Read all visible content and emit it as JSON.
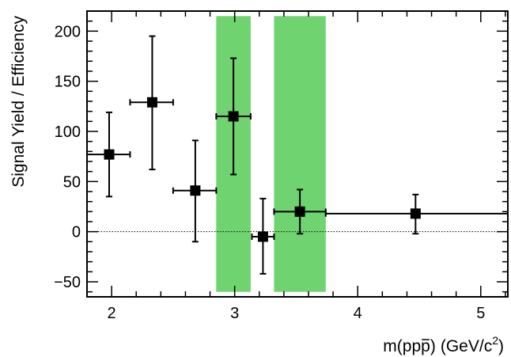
{
  "chart_data": {
    "type": "scatter",
    "title": "",
    "xlabel": "m(pp̄) (GeV/c²)",
    "xlabel_main": "m(pp",
    "xlabel_bar": "p",
    "xlabel_close": ")",
    "xlabel_units": "(GeV/c",
    "xlabel_sup": "2",
    "xlabel_units_close": ")",
    "ylabel": "Signal Yield / Efficiency",
    "xlim": [
      1.8,
      5.22
    ],
    "ylim": [
      -65,
      220
    ],
    "grid": false,
    "legend": "none",
    "colors": {
      "marker": "#000000",
      "band": "#6fd36f",
      "zero_line": "#000000"
    },
    "x_ticks": [
      2,
      3,
      4,
      5
    ],
    "x_tick_labels": [
      "2",
      "3",
      "4",
      "5"
    ],
    "y_ticks": [
      -50,
      0,
      50,
      100,
      150,
      200
    ],
    "y_tick_labels": [
      "−50",
      "0",
      "50",
      "100",
      "150",
      "200"
    ],
    "zero_line": {
      "y": 0,
      "style": "dotted"
    },
    "excluded_bands": [
      {
        "x_from": 2.85,
        "x_to": 3.13,
        "y_from": -60,
        "y_to": 215
      },
      {
        "x_from": 3.32,
        "x_to": 3.74,
        "y_from": -60,
        "y_to": 215
      }
    ],
    "points": [
      {
        "x": 1.98,
        "y": 77,
        "xerr_low": 0.18,
        "xerr_high": 0.17,
        "yerr_low": 42,
        "yerr_high": 42
      },
      {
        "x": 2.33,
        "y": 129,
        "xerr_low": 0.18,
        "xerr_high": 0.17,
        "yerr_low": 67,
        "yerr_high": 66
      },
      {
        "x": 2.68,
        "y": 41,
        "xerr_low": 0.18,
        "xerr_high": 0.17,
        "yerr_low": 51,
        "yerr_high": 50
      },
      {
        "x": 2.99,
        "y": 115,
        "xerr_low": 0.14,
        "xerr_high": 0.14,
        "yerr_low": 58,
        "yerr_high": 58
      },
      {
        "x": 3.23,
        "y": -5,
        "xerr_low": 0.09,
        "xerr_high": 0.09,
        "yerr_low": 37,
        "yerr_high": 38
      },
      {
        "x": 3.53,
        "y": 20,
        "xerr_low": 0.21,
        "xerr_high": 0.21,
        "yerr_low": 22,
        "yerr_high": 22
      },
      {
        "x": 4.47,
        "y": 18,
        "xerr_low": 0.73,
        "xerr_high": 0.75,
        "yerr_low": 20,
        "yerr_high": 19
      }
    ]
  }
}
